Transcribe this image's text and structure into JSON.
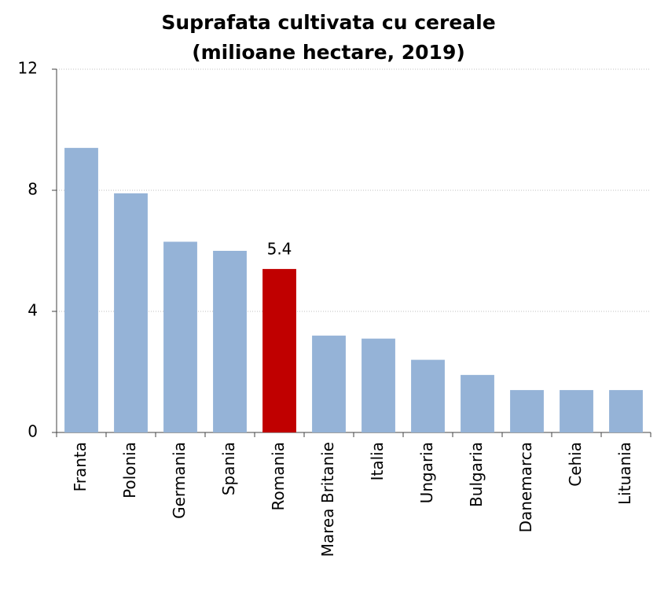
{
  "chart_data": {
    "type": "bar",
    "title": [
      "Suprafata cultivata cu cereale",
      "(milioane hectare, 2019)"
    ],
    "categories": [
      "Franta",
      "Polonia",
      "Germania",
      "Spania",
      "Romania",
      "Marea Britanie",
      "Italia",
      "Ungaria",
      "Bulgaria",
      "Danemarca",
      "Cehia",
      "Lituania"
    ],
    "values": [
      9.4,
      7.9,
      6.3,
      6.0,
      5.4,
      3.2,
      3.1,
      2.4,
      1.9,
      1.4,
      1.4,
      1.4
    ],
    "colors": [
      "#95b3d7",
      "#95b3d7",
      "#95b3d7",
      "#95b3d7",
      "#c00000",
      "#95b3d7",
      "#95b3d7",
      "#95b3d7",
      "#95b3d7",
      "#95b3d7",
      "#95b3d7",
      "#95b3d7"
    ],
    "label_index": 4,
    "ylim": [
      0,
      12
    ],
    "yticks": [
      0,
      4,
      8,
      12
    ],
    "grid": true
  }
}
